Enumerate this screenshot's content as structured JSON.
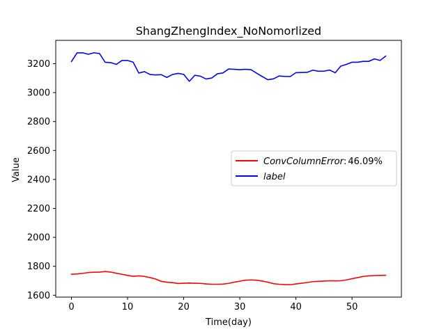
{
  "chart_data": {
    "type": "line",
    "title": "ShangZhengIndex_NoNomorlized",
    "xlabel": "Time(day)",
    "ylabel": "Value",
    "xlim": [
      -2.8,
      58.8
    ],
    "ylim": [
      1587,
      3361
    ],
    "xticks": [
      0,
      10,
      20,
      30,
      40,
      50
    ],
    "yticks": [
      1600,
      1800,
      2000,
      2200,
      2400,
      2600,
      2800,
      3000,
      3200
    ],
    "grid": false,
    "legend_position": "center-right",
    "series": [
      {
        "name": "ConvColumnError:46.09%",
        "legend_parts": {
          "label": "ConvColumnError",
          "separator": ":",
          "value": "46.09%"
        },
        "color": "#ff0000",
        "x": [
          0,
          1,
          2,
          3,
          4,
          5,
          6,
          7,
          8,
          9,
          10,
          11,
          12,
          13,
          14,
          15,
          16,
          17,
          18,
          19,
          20,
          21,
          22,
          23,
          24,
          25,
          26,
          27,
          28,
          29,
          30,
          31,
          32,
          33,
          34,
          35,
          36,
          37,
          38,
          39,
          40,
          41,
          42,
          43,
          44,
          45,
          46,
          47,
          48,
          49,
          50,
          51,
          52,
          53,
          54,
          55,
          56
        ],
        "y": [
          1745,
          1747,
          1751,
          1757,
          1759,
          1760,
          1764,
          1760,
          1752,
          1745,
          1737,
          1731,
          1734,
          1730,
          1722,
          1712,
          1696,
          1690,
          1687,
          1681,
          1683,
          1684,
          1683,
          1682,
          1678,
          1676,
          1676,
          1677,
          1682,
          1690,
          1697,
          1704,
          1706,
          1704,
          1698,
          1690,
          1680,
          1676,
          1674,
          1673,
          1678,
          1683,
          1688,
          1694,
          1696,
          1698,
          1700,
          1699,
          1700,
          1706,
          1714,
          1722,
          1730,
          1734,
          1736,
          1737,
          1738
        ]
      },
      {
        "name": "label",
        "color": "#0000ff",
        "x": [
          0,
          1,
          2,
          3,
          4,
          5,
          6,
          7,
          8,
          9,
          10,
          11,
          12,
          13,
          14,
          15,
          16,
          17,
          18,
          19,
          20,
          21,
          22,
          23,
          24,
          25,
          26,
          27,
          28,
          29,
          30,
          31,
          32,
          33,
          34,
          35,
          36,
          37,
          38,
          39,
          40,
          41,
          42,
          43,
          44,
          45,
          46,
          47,
          48,
          49,
          50,
          51,
          52,
          53,
          54,
          55,
          56
        ],
        "y": [
          3215,
          3275,
          3275,
          3265,
          3275,
          3270,
          3210,
          3207,
          3195,
          3222,
          3222,
          3210,
          3135,
          3145,
          3125,
          3122,
          3124,
          3105,
          3125,
          3133,
          3126,
          3078,
          3120,
          3113,
          3094,
          3101,
          3130,
          3136,
          3163,
          3161,
          3158,
          3161,
          3158,
          3134,
          3111,
          3089,
          3095,
          3115,
          3112,
          3111,
          3138,
          3139,
          3140,
          3155,
          3148,
          3148,
          3156,
          3137,
          3183,
          3195,
          3210,
          3210,
          3216,
          3216,
          3233,
          3222,
          3252
        ]
      }
    ]
  }
}
